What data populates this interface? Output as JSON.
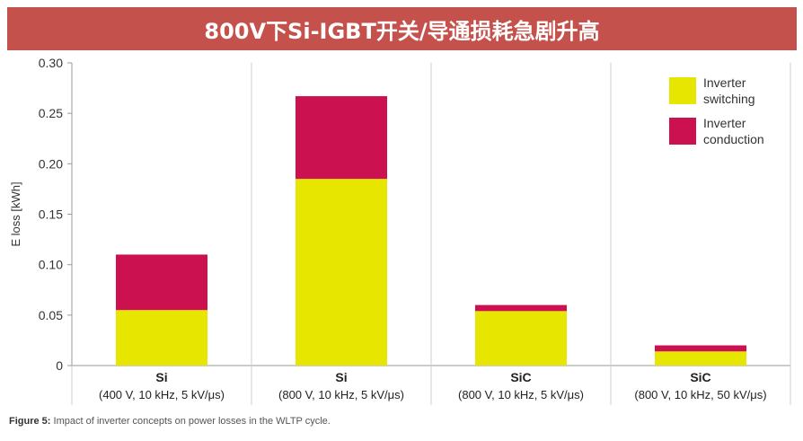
{
  "banner": {
    "title": "800V下Si-IGBT开关/导通损耗急剧升高"
  },
  "caption": {
    "label": "Figure 5:",
    "text": "Impact of inverter concepts on power losses in the WLTP cycle."
  },
  "colors": {
    "banner_bg": "#c4514c",
    "switching": "#e6e600",
    "conduction": "#cc1150"
  },
  "chart_data": {
    "type": "bar",
    "stacked": true,
    "ylabel": "E loss [kWh]",
    "ylim": [
      0,
      0.3
    ],
    "yticks": [
      "0",
      "0.05",
      "0.10",
      "0.15",
      "0.20",
      "0.25",
      "0.30"
    ],
    "ytick_values": [
      0,
      0.05,
      0.1,
      0.15,
      0.2,
      0.25,
      0.3
    ],
    "grid": "vertical",
    "legend_position": "top-right",
    "categories": [
      {
        "name": "Si",
        "detail": "(400 V, 10 kHz, 5 kV/μs)"
      },
      {
        "name": "Si",
        "detail": "(800 V, 10 kHz, 5 kV/μs)"
      },
      {
        "name": "SiC",
        "detail": "(800 V, 10 kHz, 5 kV/μs)"
      },
      {
        "name": "SiC",
        "detail": "(800 V, 10 kHz, 50 kV/μs)"
      }
    ],
    "series": [
      {
        "name": "Inverter switching",
        "legend_lines": [
          "Inverter",
          "switching"
        ],
        "color": "#e6e600",
        "values": [
          0.055,
          0.185,
          0.054,
          0.014
        ]
      },
      {
        "name": "Inverter conduction",
        "legend_lines": [
          "Inverter",
          "conduction"
        ],
        "color": "#cc1150",
        "values": [
          0.055,
          0.082,
          0.006,
          0.006
        ]
      }
    ]
  }
}
